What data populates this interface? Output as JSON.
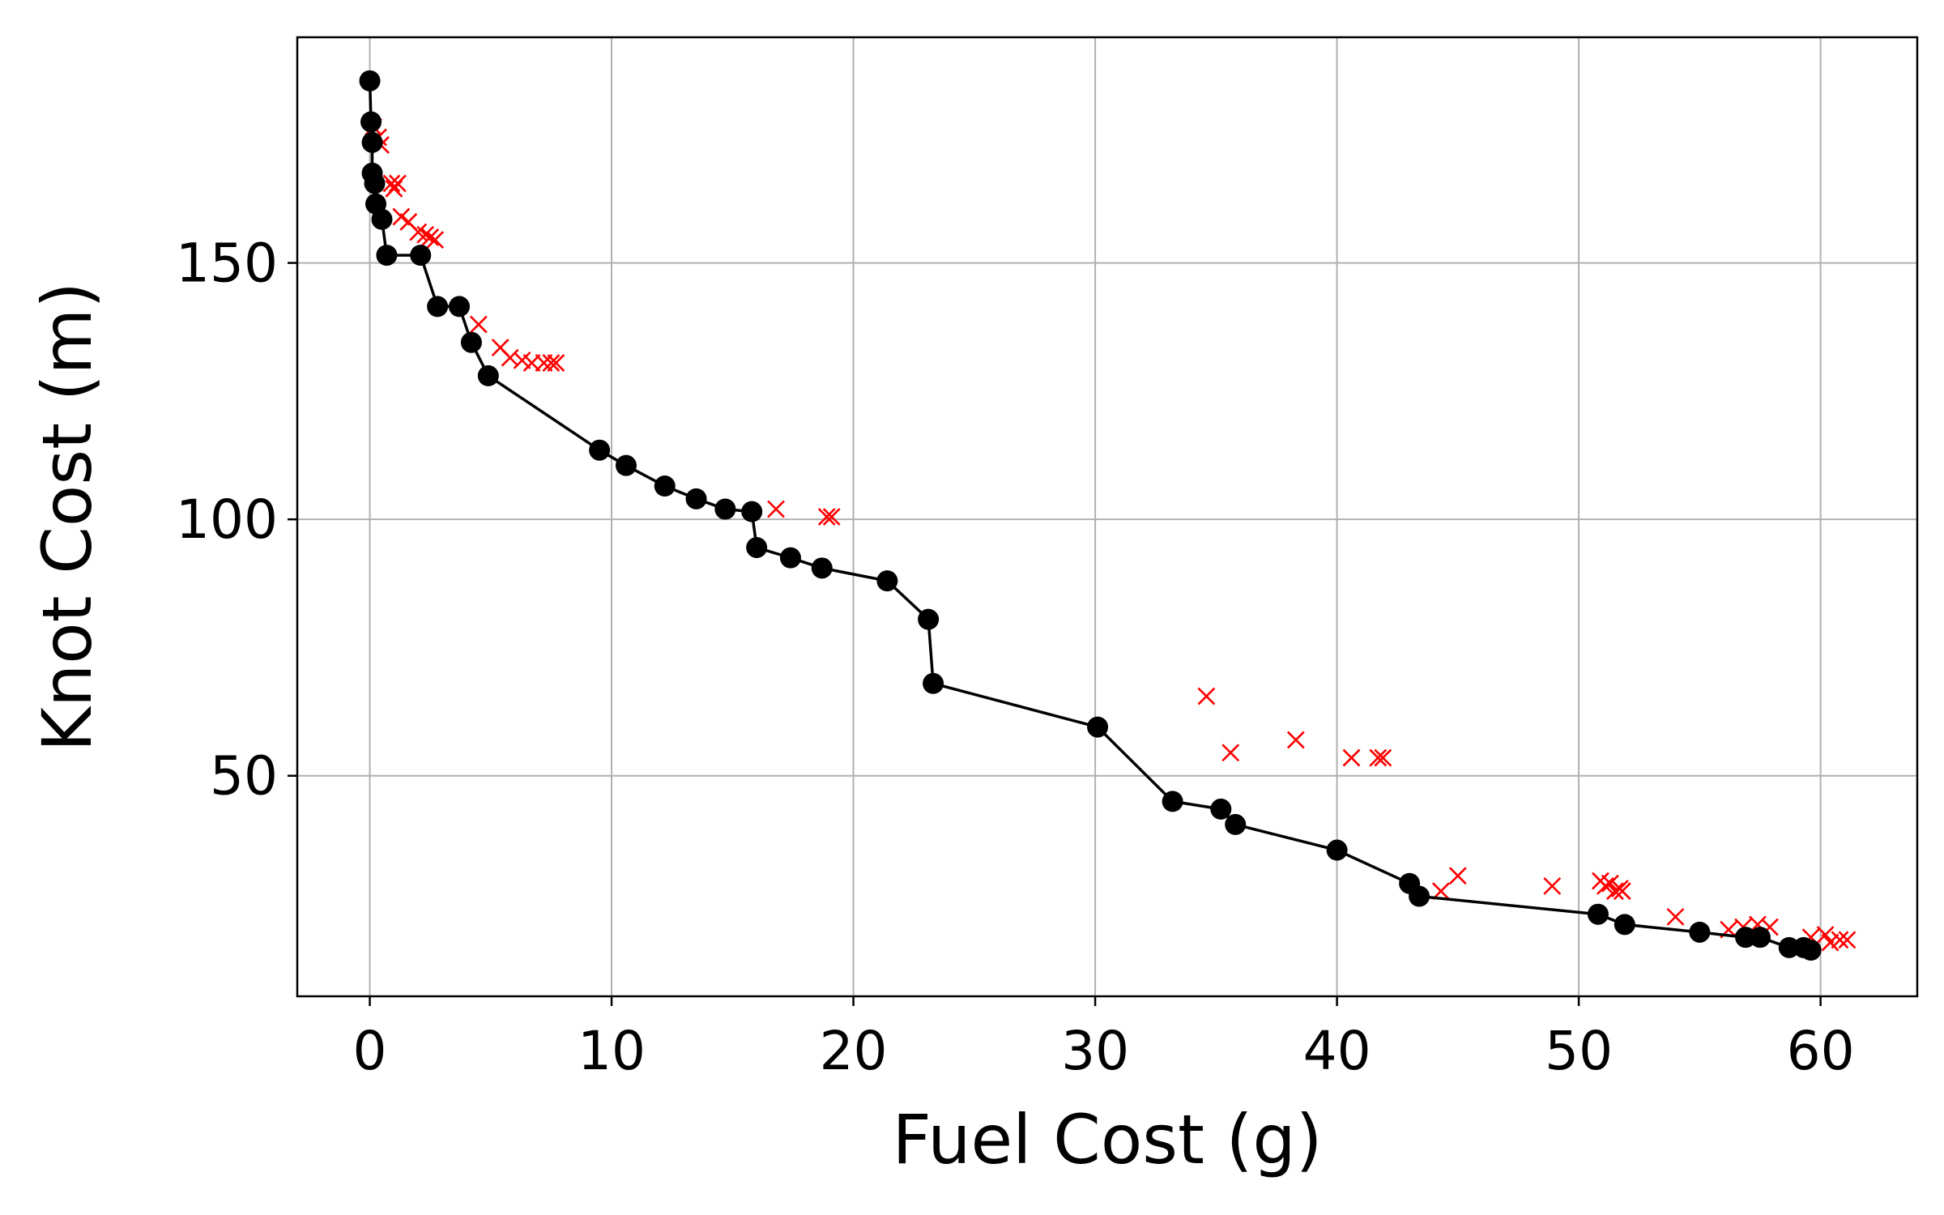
{
  "chart_data": {
    "type": "scatter",
    "title": "",
    "xlabel": "Fuel Cost (g)",
    "ylabel": "Knot Cost (m)",
    "xlim": [
      -3,
      64
    ],
    "ylim": [
      7,
      194
    ],
    "xticks": [
      0,
      10,
      20,
      30,
      40,
      50,
      60
    ],
    "yticks": [
      50,
      100,
      150
    ],
    "grid": true,
    "legend": "none",
    "series": [
      {
        "kind": "line-with-markers",
        "color": "#000000",
        "marker": "circle",
        "points": [
          [
            0.0,
            185.5
          ],
          [
            0.05,
            177.5
          ],
          [
            0.1,
            173.5
          ],
          [
            0.1,
            167.5
          ],
          [
            0.2,
            165.5
          ],
          [
            0.25,
            161.5
          ],
          [
            0.5,
            158.5
          ],
          [
            0.7,
            151.5
          ],
          [
            2.1,
            151.5
          ],
          [
            2.8,
            141.5
          ],
          [
            3.7,
            141.5
          ],
          [
            4.2,
            134.5
          ],
          [
            4.9,
            128.0
          ],
          [
            9.5,
            113.5
          ],
          [
            10.6,
            110.5
          ],
          [
            12.2,
            106.5
          ],
          [
            13.5,
            104.0
          ],
          [
            14.7,
            102.0
          ],
          [
            15.8,
            101.5
          ],
          [
            16.0,
            94.5
          ],
          [
            17.4,
            92.5
          ],
          [
            18.7,
            90.5
          ],
          [
            21.4,
            88.0
          ],
          [
            23.1,
            80.5
          ],
          [
            23.3,
            68.0
          ],
          [
            30.1,
            59.5
          ],
          [
            33.2,
            45.0
          ],
          [
            35.2,
            43.5
          ],
          [
            35.8,
            40.5
          ],
          [
            40.0,
            35.5
          ],
          [
            43.0,
            29.0
          ],
          [
            43.4,
            26.5
          ],
          [
            50.8,
            23.0
          ],
          [
            51.9,
            21.0
          ],
          [
            55.0,
            19.5
          ],
          [
            56.9,
            18.5
          ],
          [
            57.5,
            18.5
          ],
          [
            58.7,
            16.5
          ],
          [
            59.3,
            16.5
          ],
          [
            59.6,
            16.0
          ]
        ]
      },
      {
        "kind": "scatter",
        "color": "#ff0000",
        "marker": "x",
        "points": [
          [
            0.15,
            176.5
          ],
          [
            0.35,
            174.5
          ],
          [
            0.45,
            173.0
          ],
          [
            0.9,
            165.5
          ],
          [
            1.0,
            164.5
          ],
          [
            1.15,
            165.5
          ],
          [
            1.3,
            159.0
          ],
          [
            1.6,
            158.0
          ],
          [
            2.0,
            156.0
          ],
          [
            2.3,
            155.5
          ],
          [
            2.5,
            155.0
          ],
          [
            2.7,
            154.5
          ],
          [
            4.5,
            138.0
          ],
          [
            5.4,
            133.5
          ],
          [
            5.8,
            131.5
          ],
          [
            6.3,
            131.0
          ],
          [
            6.7,
            130.5
          ],
          [
            7.2,
            130.5
          ],
          [
            7.5,
            130.5
          ],
          [
            7.7,
            130.5
          ],
          [
            16.8,
            102.0
          ],
          [
            18.9,
            100.5
          ],
          [
            19.1,
            100.5
          ],
          [
            34.6,
            65.5
          ],
          [
            35.6,
            54.5
          ],
          [
            38.3,
            57.0
          ],
          [
            40.6,
            53.5
          ],
          [
            41.7,
            53.5
          ],
          [
            41.9,
            53.5
          ],
          [
            44.3,
            27.5
          ],
          [
            45.0,
            30.5
          ],
          [
            48.9,
            28.5
          ],
          [
            50.9,
            29.5
          ],
          [
            51.1,
            28.5
          ],
          [
            51.3,
            29.0
          ],
          [
            51.5,
            27.5
          ],
          [
            51.7,
            28.0
          ],
          [
            51.8,
            27.5
          ],
          [
            54.0,
            22.5
          ],
          [
            56.2,
            20.0
          ],
          [
            56.8,
            20.5
          ],
          [
            57.4,
            21.0
          ],
          [
            57.9,
            20.5
          ],
          [
            59.6,
            18.5
          ],
          [
            60.2,
            19.0
          ],
          [
            60.4,
            17.5
          ],
          [
            60.8,
            18.0
          ],
          [
            61.1,
            18.0
          ]
        ]
      }
    ]
  }
}
